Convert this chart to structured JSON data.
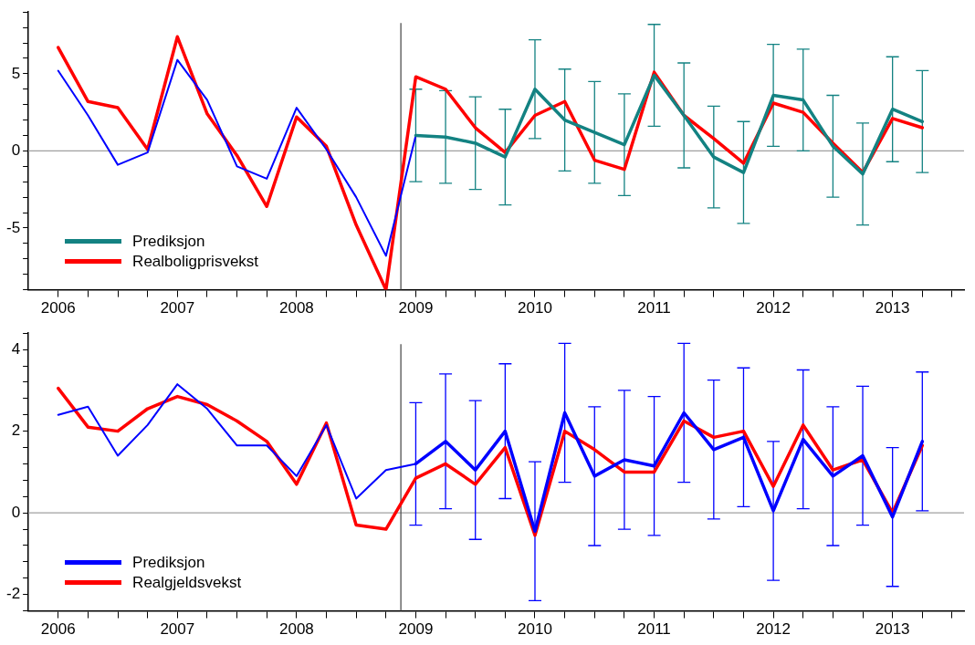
{
  "chart_data": [
    {
      "type": "line",
      "x": [
        2006,
        2006.25,
        2006.5,
        2006.75,
        2007,
        2007.25,
        2007.5,
        2007.75,
        2008,
        2008.25,
        2008.5,
        2008.75,
        2009,
        2009.25,
        2009.5,
        2009.75,
        2010,
        2010.25,
        2010.5,
        2010.75,
        2011,
        2011.25,
        2011.5,
        2011.75,
        2012,
        2012.25,
        2012.5,
        2012.75,
        2013,
        2013.25
      ],
      "series": [
        {
          "name": "Prediksjon",
          "color": "#138282",
          "x": [
            2009,
            2009.25,
            2009.5,
            2009.75,
            2010,
            2010.25,
            2010.5,
            2010.75,
            2011,
            2011.25,
            2011.5,
            2011.75,
            2012,
            2012.25,
            2012.5,
            2012.75,
            2013,
            2013.25
          ],
          "values": [
            1.0,
            0.9,
            0.5,
            -0.4,
            4.0,
            2.0,
            1.2,
            0.4,
            4.9,
            2.3,
            -0.4,
            -1.4,
            3.6,
            3.3,
            0.3,
            -1.5,
            2.7,
            1.9
          ],
          "errors": [
            3.0,
            3.0,
            3.0,
            3.1,
            3.2,
            3.3,
            3.3,
            3.3,
            3.3,
            3.4,
            3.3,
            3.3,
            3.3,
            3.3,
            3.3,
            3.3,
            3.4,
            3.3
          ]
        },
        {
          "color": "#0000ff",
          "x": [
            2006,
            2006.25,
            2006.5,
            2006.75,
            2007,
            2007.25,
            2007.5,
            2007.75,
            2008,
            2008.25,
            2008.5,
            2008.75,
            2009
          ],
          "values": [
            5.2,
            2.3,
            -0.9,
            -0.1,
            5.9,
            3.3,
            -1.0,
            -1.8,
            2.8,
            0.1,
            -3.0,
            -6.8,
            1.0
          ]
        },
        {
          "name": "Realboligprisvekst",
          "color": "#ff0000",
          "values": [
            6.7,
            3.2,
            2.8,
            0.1,
            7.4,
            2.4,
            -0.3,
            -3.6,
            2.2,
            0.3,
            -4.8,
            -9.0,
            4.8,
            4.0,
            1.5,
            -0.1,
            2.3,
            3.2,
            -0.6,
            -1.2,
            5.1,
            2.3,
            0.8,
            -0.8,
            3.1,
            2.5,
            0.5,
            -1.4,
            2.1,
            1.5
          ]
        }
      ],
      "xlim": [
        2005.75,
        2013.6
      ],
      "xticks": [
        2006,
        {
          "value": 2006.25,
          "label": null
        },
        {
          "value": 2006.5,
          "label": null
        },
        {
          "value": 2006.75,
          "label": null
        },
        2007,
        {
          "value": 2007.25,
          "label": null
        },
        {
          "value": 2007.5,
          "label": null
        },
        {
          "value": 2007.75,
          "label": null
        },
        2008,
        {
          "value": 2008.25,
          "label": null
        },
        {
          "value": 2008.5,
          "label": null
        },
        {
          "value": 2008.75,
          "label": null
        },
        2009,
        {
          "value": 2009.25,
          "label": null
        },
        {
          "value": 2009.5,
          "label": null
        },
        {
          "value": 2009.75,
          "label": null
        },
        2010,
        {
          "value": 2010.25,
          "label": null
        },
        {
          "value": 2010.5,
          "label": null
        },
        {
          "value": 2010.75,
          "label": null
        },
        2011,
        {
          "value": 2011.25,
          "label": null
        },
        {
          "value": 2011.5,
          "label": null
        },
        {
          "value": 2011.75,
          "label": null
        },
        2012,
        {
          "value": 2012.25,
          "label": null
        },
        {
          "value": 2012.5,
          "label": null
        },
        {
          "value": 2012.75,
          "label": null
        },
        2013,
        {
          "value": 2013.25,
          "label": null
        },
        {
          "value": 2013.5,
          "label": null
        }
      ],
      "ylim": [
        -9,
        9
      ],
      "yticks": [
        {
          "value": -9,
          "label": null
        },
        {
          "value": -8,
          "label": null
        },
        {
          "value": -7,
          "label": null
        },
        {
          "value": -6,
          "label": null
        },
        -5,
        {
          "value": -4,
          "label": null
        },
        {
          "value": -3,
          "label": null
        },
        {
          "value": -2,
          "label": null
        },
        {
          "value": -1,
          "label": null
        },
        0,
        {
          "value": 1,
          "label": null
        },
        {
          "value": 2,
          "label": null
        },
        {
          "value": 3,
          "label": null
        },
        {
          "value": 4,
          "label": null
        },
        5,
        {
          "value": 6,
          "label": null
        },
        {
          "value": 7,
          "label": null
        },
        {
          "value": 8,
          "label": null
        },
        {
          "value": 9,
          "label": null
        }
      ],
      "ref_lines": [
        {
          "axis": "y",
          "value": 0,
          "color": "#a0a0a0"
        },
        {
          "axis": "x",
          "value": 2008.875,
          "color": "#505050"
        }
      ],
      "legend": "bottom left",
      "grid": false,
      "marker": "none",
      "line_style": "solid"
    },
    {
      "type": "line",
      "x": [
        2006,
        2006.25,
        2006.5,
        2006.75,
        2007,
        2007.25,
        2007.5,
        2007.75,
        2008,
        2008.25,
        2008.5,
        2008.75,
        2009,
        2009.25,
        2009.5,
        2009.75,
        2010,
        2010.25,
        2010.5,
        2010.75,
        2011,
        2011.25,
        2011.5,
        2011.75,
        2012,
        2012.25,
        2012.5,
        2012.75,
        2013,
        2013.25
      ],
      "series": [
        {
          "name": "Prediksjon",
          "color": "#0000ff",
          "x": [
            2009,
            2009.25,
            2009.5,
            2009.75,
            2010,
            2010.25,
            2010.5,
            2010.75,
            2011,
            2011.25,
            2011.5,
            2011.75,
            2012,
            2012.25,
            2012.5,
            2012.75,
            2013,
            2013.25
          ],
          "values": [
            1.2,
            1.75,
            1.05,
            2.0,
            -0.45,
            2.45,
            0.9,
            1.3,
            1.15,
            2.45,
            1.55,
            1.85,
            0.05,
            1.8,
            0.9,
            1.4,
            -0.1,
            1.75
          ],
          "errors": [
            1.5,
            1.65,
            1.7,
            1.65,
            1.7,
            1.7,
            1.7,
            1.7,
            1.7,
            1.7,
            1.7,
            1.7,
            1.7,
            1.7,
            1.7,
            1.7,
            1.7,
            1.7
          ]
        },
        {
          "color": "#0000ff",
          "x": [
            2006,
            2006.25,
            2006.5,
            2006.75,
            2007,
            2007.25,
            2007.5,
            2007.75,
            2008,
            2008.25,
            2008.5,
            2008.75,
            2009
          ],
          "values": [
            2.4,
            2.6,
            1.4,
            2.15,
            3.15,
            2.55,
            1.65,
            1.65,
            0.9,
            2.15,
            0.35,
            1.05,
            1.2
          ]
        },
        {
          "name": "Realgjeldsvekst",
          "color": "#ff0000",
          "values": [
            3.05,
            2.1,
            2.0,
            2.55,
            2.85,
            2.65,
            2.25,
            1.75,
            0.7,
            2.2,
            -0.3,
            -0.4,
            0.85,
            1.2,
            0.7,
            1.6,
            -0.55,
            2.0,
            1.55,
            1.0,
            1.0,
            2.25,
            1.85,
            2.0,
            0.65,
            2.15,
            1.05,
            1.3,
            0.0,
            1.65
          ]
        }
      ],
      "xlim": [
        2005.75,
        2013.6
      ],
      "xticks": [
        2006,
        {
          "value": 2006.25,
          "label": null
        },
        {
          "value": 2006.5,
          "label": null
        },
        {
          "value": 2006.75,
          "label": null
        },
        2007,
        {
          "value": 2007.25,
          "label": null
        },
        {
          "value": 2007.5,
          "label": null
        },
        {
          "value": 2007.75,
          "label": null
        },
        2008,
        {
          "value": 2008.25,
          "label": null
        },
        {
          "value": 2008.5,
          "label": null
        },
        {
          "value": 2008.75,
          "label": null
        },
        2009,
        {
          "value": 2009.25,
          "label": null
        },
        {
          "value": 2009.5,
          "label": null
        },
        {
          "value": 2009.75,
          "label": null
        },
        2010,
        {
          "value": 2010.25,
          "label": null
        },
        {
          "value": 2010.5,
          "label": null
        },
        {
          "value": 2010.75,
          "label": null
        },
        2011,
        {
          "value": 2011.25,
          "label": null
        },
        {
          "value": 2011.5,
          "label": null
        },
        {
          "value": 2011.75,
          "label": null
        },
        2012,
        {
          "value": 2012.25,
          "label": null
        },
        {
          "value": 2012.5,
          "label": null
        },
        {
          "value": 2012.75,
          "label": null
        },
        2013,
        {
          "value": 2013.25,
          "label": null
        },
        {
          "value": 2013.5,
          "label": null
        }
      ],
      "ylim": [
        -2.4,
        4.4
      ],
      "yticks": [
        {
          "value": -2.4,
          "label": null
        },
        -2,
        {
          "value": -1.6,
          "label": null
        },
        {
          "value": -1.2,
          "label": null
        },
        {
          "value": -0.8,
          "label": null
        },
        {
          "value": -0.4,
          "label": null
        },
        0,
        {
          "value": 0.4,
          "label": null
        },
        {
          "value": 0.8,
          "label": null
        },
        {
          "value": 1.2,
          "label": null
        },
        {
          "value": 1.6,
          "label": null
        },
        2,
        {
          "value": 2.4,
          "label": null
        },
        {
          "value": 2.8,
          "label": null
        },
        {
          "value": 3.2,
          "label": null
        },
        {
          "value": 3.6,
          "label": null
        },
        4,
        {
          "value": 4.4,
          "label": null
        }
      ],
      "ref_lines": [
        {
          "axis": "y",
          "value": 0,
          "color": "#a0a0a0"
        },
        {
          "axis": "x",
          "value": 2008.875,
          "color": "#505050"
        }
      ],
      "legend": "bottom left",
      "grid": false,
      "marker": "none",
      "line_style": "solid"
    }
  ]
}
